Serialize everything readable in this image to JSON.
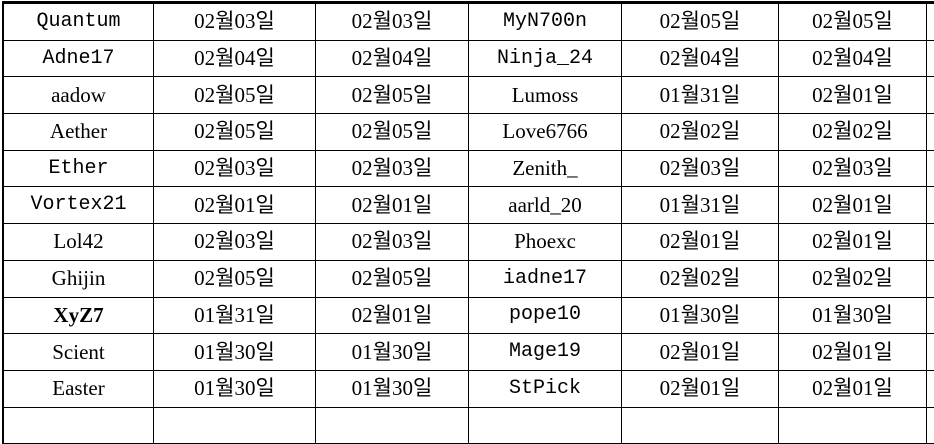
{
  "table": {
    "column_kinds": [
      "username",
      "date",
      "date",
      "username",
      "date",
      "date"
    ],
    "rows": [
      {
        "c": [
          "Quantum",
          "02월03일",
          "02월03일",
          "MyN700n",
          "02월05일",
          "02월05일"
        ]
      },
      {
        "c": [
          "Adne17",
          "02월04일",
          "02월04일",
          "Ninja_24",
          "02월04일",
          "02월04일"
        ]
      },
      {
        "c": [
          "aadow",
          "02월05일",
          "02월05일",
          "Lumoss",
          "01월31일",
          "02월01일"
        ]
      },
      {
        "c": [
          "Aether",
          "02월05일",
          "02월05일",
          "Love6766",
          "02월02일",
          "02월02일"
        ]
      },
      {
        "c": [
          "Ether",
          "02월03일",
          "02월03일",
          "Zenith_",
          "02월03일",
          "02월03일"
        ]
      },
      {
        "c": [
          "Vortex21",
          "02월01일",
          "02월01일",
          "aarld_20",
          "01월31일",
          "02월01일"
        ]
      },
      {
        "c": [
          "Lol42",
          "02월03일",
          "02월03일",
          "Phoexc",
          "02월01일",
          "02월01일"
        ]
      },
      {
        "c": [
          "Ghijin",
          "02월05일",
          "02월05일",
          "iadne17",
          "02월02일",
          "02월02일"
        ]
      },
      {
        "c": [
          "XyZ7",
          "01월31일",
          "02월01일",
          "pope10",
          "01월30일",
          "01월30일"
        ]
      },
      {
        "c": [
          "Scient",
          "01월30일",
          "01월30일",
          "Mage19",
          "02월01일",
          "02월01일"
        ]
      },
      {
        "c": [
          "Easter",
          "01월30일",
          "01월30일",
          "StPick",
          "02월01일",
          "02월01일"
        ]
      }
    ]
  },
  "colors": {
    "grid_line": "#000000",
    "text": "#000000",
    "background": "#ffffff"
  }
}
